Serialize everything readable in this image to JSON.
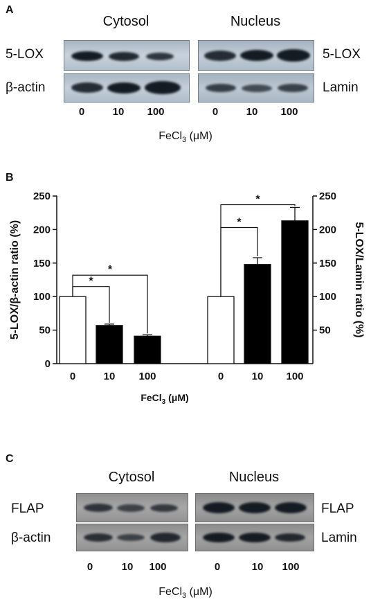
{
  "panel_a": {
    "letter": "A",
    "cytosol_title": "Cytosol",
    "nucleus_title": "Nucleus",
    "left_labels": [
      "5-LOX",
      "β-actin"
    ],
    "right_labels": [
      "5-LOX",
      "Lamin"
    ],
    "lanes": [
      "0",
      "10",
      "100"
    ],
    "xlabel_prefix": "FeCl",
    "xlabel_sub": "3",
    "xlabel_suffix": " (μM)"
  },
  "panel_b": {
    "letter": "B",
    "xlabel_prefix": "FeCl",
    "xlabel_sub": "3",
    "xlabel_suffix": " (μM)"
  },
  "panel_c": {
    "letter": "C",
    "cytosol_title": "Cytosol",
    "nucleus_title": "Nucleus",
    "left_labels": [
      "FLAP",
      "β-actin"
    ],
    "right_labels": [
      "FLAP",
      "Lamin"
    ],
    "lanes": [
      "0",
      "10",
      "100"
    ],
    "xlabel_prefix": "FeCl",
    "xlabel_sub": "3",
    "xlabel_suffix": " (μM)"
  },
  "colors": {
    "strip_bg": "#bcc7d2",
    "band": "#151b22",
    "bar_control": "#ffffff",
    "bar_treated": "#000000"
  },
  "chart_data": {
    "type": "bar",
    "categories": [
      "0",
      "10",
      "100",
      "0",
      "10",
      "100"
    ],
    "groups": [
      {
        "axis": "left",
        "ylabel": "5-LOX/β-actin ratio (%)",
        "categories": [
          "0",
          "10",
          "100"
        ],
        "values": [
          100,
          57,
          41
        ],
        "errors": [
          0,
          2,
          2
        ],
        "fills": [
          "white",
          "black",
          "black"
        ]
      },
      {
        "axis": "right",
        "ylabel": "5-LOX/Lamin ratio (%)",
        "categories": [
          "0",
          "10",
          "100"
        ],
        "values": [
          100,
          148,
          213
        ],
        "errors": [
          0,
          10,
          20
        ],
        "fills": [
          "white",
          "black",
          "black"
        ]
      }
    ],
    "ylim": [
      0,
      250
    ],
    "left_ticks": [
      "0",
      "50",
      "100",
      "150",
      "200",
      "250"
    ],
    "right_ticks": [
      "50",
      "100",
      "150",
      "200",
      "250"
    ],
    "significance": [
      {
        "group": 0,
        "from": 0,
        "to": 1,
        "label": "*"
      },
      {
        "group": 0,
        "from": 0,
        "to": 2,
        "label": "*"
      },
      {
        "group": 1,
        "from": 0,
        "to": 1,
        "label": "*"
      },
      {
        "group": 1,
        "from": 0,
        "to": 2,
        "label": "*"
      }
    ],
    "grid": false
  }
}
